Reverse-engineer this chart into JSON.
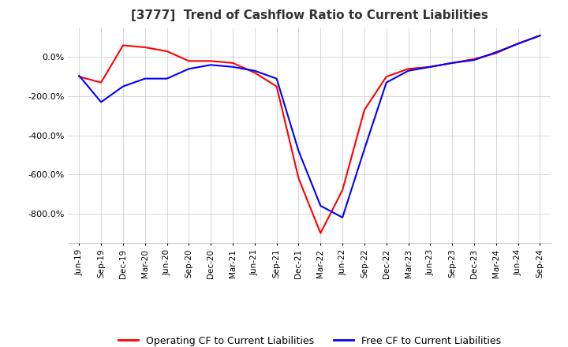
{
  "title": "[3777]  Trend of Cashflow Ratio to Current Liabilities",
  "legend": [
    "Operating CF to Current Liabilities",
    "Free CF to Current Liabilities"
  ],
  "line_colors": [
    "#ff0000",
    "#0000ff"
  ],
  "background_color": "#ffffff",
  "grid_color": "#c8c8c8",
  "ylim": [
    -950,
    150
  ],
  "yticks": [
    0,
    -200,
    -400,
    -600,
    -800
  ],
  "x_labels": [
    "Jun-19",
    "Sep-19",
    "Dec-19",
    "Mar-20",
    "Jun-20",
    "Sep-20",
    "Dec-20",
    "Mar-21",
    "Jun-21",
    "Sep-21",
    "Dec-21",
    "Mar-22",
    "Jun-22",
    "Sep-22",
    "Dec-22",
    "Mar-23",
    "Jun-23",
    "Sep-23",
    "Dec-23",
    "Mar-24",
    "Jun-24",
    "Sep-24"
  ],
  "operating_cf": [
    -100,
    -130,
    60,
    50,
    30,
    -20,
    -20,
    -30,
    -80,
    -150,
    -620,
    -900,
    -680,
    -270,
    -100,
    -60,
    -50,
    -30,
    -10,
    20,
    70,
    110
  ],
  "free_cf": [
    -95,
    -230,
    -150,
    -110,
    -110,
    -60,
    -40,
    -50,
    -70,
    -110,
    -480,
    -760,
    -820,
    -470,
    -130,
    -70,
    -50,
    -30,
    -15,
    25,
    68,
    110
  ]
}
